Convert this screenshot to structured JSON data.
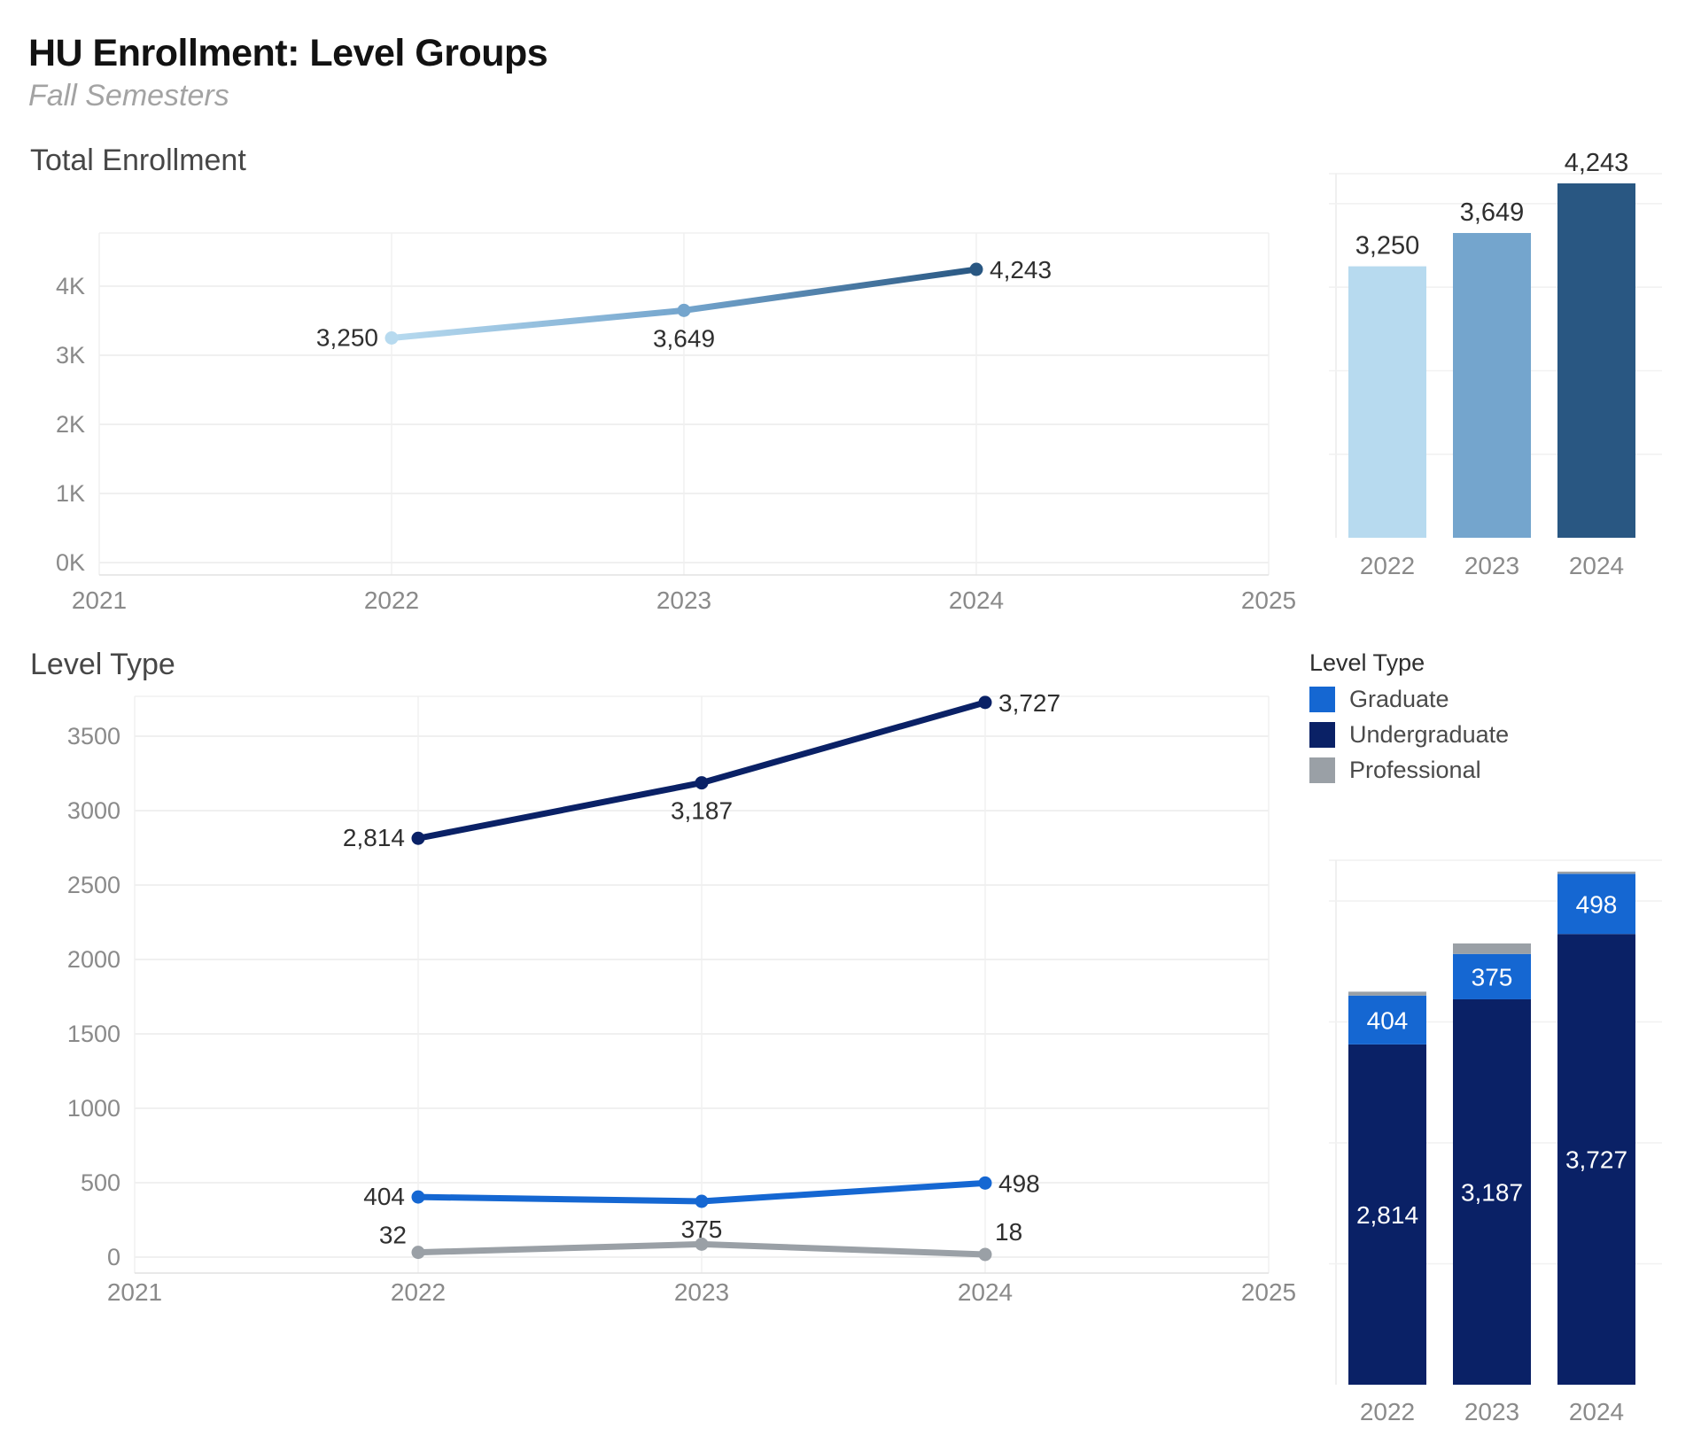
{
  "page": {
    "title": "HU Enrollment: Level Groups",
    "subtitle": "Fall Semesters"
  },
  "sections": [
    {
      "title": "Total Enrollment"
    },
    {
      "title": "Level Type"
    }
  ],
  "legend": {
    "title": "Level Type",
    "items": [
      {
        "label": "Graduate",
        "color": "#1567d2"
      },
      {
        "label": "Undergraduate",
        "color": "#0a2166"
      },
      {
        "label": "Professional",
        "color": "#9aa0a6"
      }
    ]
  },
  "colors": {
    "year_2022": "#b7daef",
    "year_2023": "#74a5cd",
    "year_2024": "#295782",
    "graduate": "#1567d2",
    "undergraduate": "#0a2166",
    "professional": "#9aa0a6",
    "axis_text": "#8a8a8a",
    "label_text": "#2f2f2f"
  },
  "chart_data": [
    {
      "id": "total-line",
      "type": "line",
      "title": "Total Enrollment",
      "x_ticks": [
        "2021",
        "2022",
        "2023",
        "2024",
        "2025"
      ],
      "y_ticks": [
        {
          "value": 0,
          "label": "0K"
        },
        {
          "value": 1000,
          "label": "1K"
        },
        {
          "value": 2000,
          "label": "2K"
        },
        {
          "value": 3000,
          "label": "3K"
        },
        {
          "value": 4000,
          "label": "4K"
        }
      ],
      "ylim": [
        0,
        4600
      ],
      "grid": true,
      "series": [
        {
          "name": "Total Enrollment",
          "x": [
            "2022",
            "2023",
            "2024"
          ],
          "values": [
            3250,
            3649,
            4243
          ],
          "point_labels": [
            "3,250",
            "3,649",
            "4,243"
          ],
          "label_positions": [
            "left",
            "below",
            "right"
          ],
          "gradient": [
            "#b7daef",
            "#74a5cd",
            "#295782"
          ],
          "point_colors": [
            "#b7daef",
            "#74a5cd",
            "#295782"
          ]
        }
      ]
    },
    {
      "id": "total-bars",
      "type": "bar",
      "title": "Total Enrollment by Year",
      "categories": [
        "2022",
        "2023",
        "2024"
      ],
      "values": [
        3250,
        3649,
        4243
      ],
      "bar_labels": [
        "3,250",
        "3,649",
        "4,243"
      ],
      "bar_colors": [
        "#b7daef",
        "#74a5cd",
        "#295782"
      ],
      "ylim": [
        0,
        4500
      ],
      "grid": true
    },
    {
      "id": "level-line",
      "type": "line",
      "title": "Level Type",
      "x_ticks": [
        "2021",
        "2022",
        "2023",
        "2024",
        "2025"
      ],
      "y_ticks": [
        {
          "value": 0,
          "label": "0"
        },
        {
          "value": 500,
          "label": "500"
        },
        {
          "value": 1000,
          "label": "1000"
        },
        {
          "value": 1500,
          "label": "1500"
        },
        {
          "value": 2000,
          "label": "2000"
        },
        {
          "value": 2500,
          "label": "2500"
        },
        {
          "value": 3000,
          "label": "3000"
        },
        {
          "value": 3500,
          "label": "3500"
        }
      ],
      "ylim": [
        0,
        3850
      ],
      "grid": true,
      "series": [
        {
          "name": "Undergraduate",
          "color": "#0a2166",
          "x": [
            "2022",
            "2023",
            "2024"
          ],
          "values": [
            2814,
            3187,
            3727
          ],
          "point_labels": [
            "2,814",
            "3,187",
            "3,727"
          ],
          "label_positions": [
            "left",
            "below",
            "right"
          ]
        },
        {
          "name": "Graduate",
          "color": "#1567d2",
          "x": [
            "2022",
            "2023",
            "2024"
          ],
          "values": [
            404,
            375,
            498
          ],
          "point_labels": [
            "404",
            "375",
            "498"
          ],
          "label_positions": [
            "left",
            "below",
            "right"
          ]
        },
        {
          "name": "Professional",
          "color": "#9aa0a6",
          "x": [
            "2022",
            "2023",
            "2024"
          ],
          "values": [
            32,
            87,
            18
          ],
          "point_labels": [
            "32",
            "",
            "18"
          ],
          "label_positions": [
            "above-left",
            "none",
            "above-right"
          ]
        }
      ]
    },
    {
      "id": "level-stacked",
      "type": "bar",
      "stacked": true,
      "stack_order": "bottom-to-top",
      "title": "Level Type by Year",
      "categories": [
        "2022",
        "2023",
        "2024"
      ],
      "series": [
        {
          "name": "Undergraduate",
          "color": "#0a2166",
          "values": [
            2814,
            3187,
            3727
          ],
          "labels": [
            "2,814",
            "3,187",
            "3,727"
          ]
        },
        {
          "name": "Graduate",
          "color": "#1567d2",
          "values": [
            404,
            375,
            498
          ],
          "labels": [
            "404",
            "375",
            "498"
          ]
        },
        {
          "name": "Professional",
          "color": "#9aa0a6",
          "values": [
            32,
            87,
            18
          ],
          "labels": [
            "",
            "",
            ""
          ]
        }
      ],
      "ylim": [
        0,
        4350
      ],
      "grid": true
    }
  ]
}
